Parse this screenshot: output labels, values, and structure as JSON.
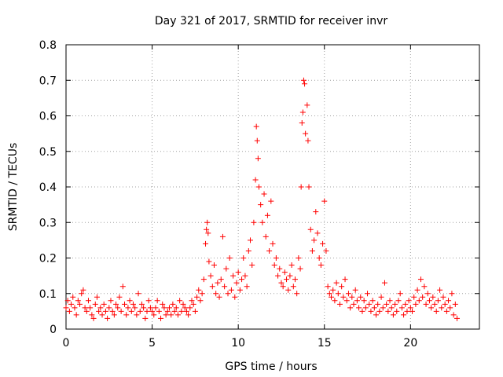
{
  "chart_data": {
    "type": "scatter",
    "title": "Day 321 of 2017, SRMTID for receiver invr",
    "xlabel": "GPS time / hours",
    "ylabel": "SRMTID / TECUs",
    "xlim": [
      0,
      24
    ],
    "ylim": [
      0,
      0.8
    ],
    "grid": true,
    "xticks": [
      {
        "value": 0,
        "label": "0"
      },
      {
        "value": 5,
        "label": "5"
      },
      {
        "value": 10,
        "label": "10"
      },
      {
        "value": 15,
        "label": "15"
      },
      {
        "value": 20,
        "label": "20"
      }
    ],
    "yticks": [
      {
        "value": 0,
        "label": "0"
      },
      {
        "value": 0.1,
        "label": "0.1"
      },
      {
        "value": 0.2,
        "label": "0.2"
      },
      {
        "value": 0.3,
        "label": "0.3"
      },
      {
        "value": 0.4,
        "label": "0.4"
      },
      {
        "value": 0.5,
        "label": "0.5"
      },
      {
        "value": 0.6,
        "label": "0.6"
      },
      {
        "value": 0.7,
        "label": "0.7"
      },
      {
        "value": 0.8,
        "label": "0.8"
      }
    ],
    "marker": "+",
    "series_color": "#ff0000",
    "series": [
      {
        "name": "SRMTID",
        "points": [
          [
            0.0,
            0.06
          ],
          [
            0.1,
            0.08
          ],
          [
            0.2,
            0.05
          ],
          [
            0.3,
            0.07
          ],
          [
            0.4,
            0.09
          ],
          [
            0.5,
            0.06
          ],
          [
            0.6,
            0.04
          ],
          [
            0.7,
            0.08
          ],
          [
            0.8,
            0.07
          ],
          [
            0.9,
            0.1
          ],
          [
            1.0,
            0.11
          ],
          [
            1.1,
            0.06
          ],
          [
            1.2,
            0.05
          ],
          [
            1.3,
            0.08
          ],
          [
            1.4,
            0.06
          ],
          [
            1.5,
            0.04
          ],
          [
            1.6,
            0.03
          ],
          [
            1.7,
            0.07
          ],
          [
            1.8,
            0.09
          ],
          [
            1.9,
            0.05
          ],
          [
            2.0,
            0.06
          ],
          [
            2.1,
            0.04
          ],
          [
            2.2,
            0.07
          ],
          [
            2.3,
            0.05
          ],
          [
            2.4,
            0.03
          ],
          [
            2.5,
            0.06
          ],
          [
            2.6,
            0.08
          ],
          [
            2.7,
            0.05
          ],
          [
            2.8,
            0.04
          ],
          [
            2.9,
            0.07
          ],
          [
            3.0,
            0.06
          ],
          [
            3.1,
            0.09
          ],
          [
            3.2,
            0.05
          ],
          [
            3.3,
            0.12
          ],
          [
            3.4,
            0.07
          ],
          [
            3.5,
            0.04
          ],
          [
            3.6,
            0.06
          ],
          [
            3.7,
            0.08
          ],
          [
            3.8,
            0.05
          ],
          [
            3.9,
            0.07
          ],
          [
            4.0,
            0.06
          ],
          [
            4.1,
            0.04
          ],
          [
            4.2,
            0.1
          ],
          [
            4.3,
            0.05
          ],
          [
            4.4,
            0.07
          ],
          [
            4.5,
            0.06
          ],
          [
            4.6,
            0.03
          ],
          [
            4.7,
            0.05
          ],
          [
            4.8,
            0.08
          ],
          [
            4.9,
            0.06
          ],
          [
            5.0,
            0.05
          ],
          [
            5.1,
            0.04
          ],
          [
            5.2,
            0.06
          ],
          [
            5.3,
            0.08
          ],
          [
            5.4,
            0.05
          ],
          [
            5.5,
            0.03
          ],
          [
            5.6,
            0.07
          ],
          [
            5.7,
            0.06
          ],
          [
            5.8,
            0.04
          ],
          [
            5.9,
            0.05
          ],
          [
            6.0,
            0.06
          ],
          [
            6.1,
            0.04
          ],
          [
            6.2,
            0.07
          ],
          [
            6.3,
            0.05
          ],
          [
            6.4,
            0.06
          ],
          [
            6.5,
            0.04
          ],
          [
            6.6,
            0.08
          ],
          [
            6.7,
            0.05
          ],
          [
            6.8,
            0.07
          ],
          [
            6.9,
            0.06
          ],
          [
            7.0,
            0.05
          ],
          [
            7.1,
            0.04
          ],
          [
            7.2,
            0.06
          ],
          [
            7.3,
            0.08
          ],
          [
            7.4,
            0.07
          ],
          [
            7.5,
            0.05
          ],
          [
            7.6,
            0.09
          ],
          [
            7.7,
            0.11
          ],
          [
            7.8,
            0.08
          ],
          [
            7.9,
            0.1
          ],
          [
            8.0,
            0.14
          ],
          [
            8.1,
            0.24
          ],
          [
            8.15,
            0.28
          ],
          [
            8.2,
            0.3
          ],
          [
            8.25,
            0.27
          ],
          [
            8.3,
            0.19
          ],
          [
            8.4,
            0.15
          ],
          [
            8.5,
            0.12
          ],
          [
            8.6,
            0.18
          ],
          [
            8.7,
            0.1
          ],
          [
            8.8,
            0.13
          ],
          [
            8.9,
            0.09
          ],
          [
            9.0,
            0.14
          ],
          [
            9.1,
            0.26
          ],
          [
            9.2,
            0.12
          ],
          [
            9.3,
            0.17
          ],
          [
            9.4,
            0.1
          ],
          [
            9.5,
            0.2
          ],
          [
            9.6,
            0.11
          ],
          [
            9.7,
            0.15
          ],
          [
            9.8,
            0.09
          ],
          [
            9.9,
            0.13
          ],
          [
            10.0,
            0.16
          ],
          [
            10.1,
            0.11
          ],
          [
            10.2,
            0.14
          ],
          [
            10.3,
            0.2
          ],
          [
            10.4,
            0.15
          ],
          [
            10.5,
            0.12
          ],
          [
            10.6,
            0.22
          ],
          [
            10.7,
            0.25
          ],
          [
            10.8,
            0.18
          ],
          [
            10.9,
            0.3
          ],
          [
            11.0,
            0.42
          ],
          [
            11.05,
            0.57
          ],
          [
            11.1,
            0.53
          ],
          [
            11.15,
            0.48
          ],
          [
            11.2,
            0.4
          ],
          [
            11.3,
            0.35
          ],
          [
            11.4,
            0.3
          ],
          [
            11.5,
            0.38
          ],
          [
            11.6,
            0.26
          ],
          [
            11.7,
            0.32
          ],
          [
            11.8,
            0.22
          ],
          [
            11.9,
            0.36
          ],
          [
            12.0,
            0.24
          ],
          [
            12.1,
            0.18
          ],
          [
            12.2,
            0.2
          ],
          [
            12.3,
            0.15
          ],
          [
            12.4,
            0.17
          ],
          [
            12.5,
            0.13
          ],
          [
            12.6,
            0.12
          ],
          [
            12.7,
            0.16
          ],
          [
            12.8,
            0.14
          ],
          [
            12.9,
            0.11
          ],
          [
            13.0,
            0.15
          ],
          [
            13.1,
            0.18
          ],
          [
            13.2,
            0.12
          ],
          [
            13.3,
            0.14
          ],
          [
            13.4,
            0.1
          ],
          [
            13.5,
            0.2
          ],
          [
            13.6,
            0.17
          ],
          [
            13.65,
            0.4
          ],
          [
            13.7,
            0.58
          ],
          [
            13.75,
            0.61
          ],
          [
            13.8,
            0.7
          ],
          [
            13.85,
            0.69
          ],
          [
            13.9,
            0.55
          ],
          [
            14.0,
            0.63
          ],
          [
            14.05,
            0.53
          ],
          [
            14.1,
            0.4
          ],
          [
            14.2,
            0.28
          ],
          [
            14.3,
            0.22
          ],
          [
            14.4,
            0.25
          ],
          [
            14.5,
            0.33
          ],
          [
            14.6,
            0.27
          ],
          [
            14.7,
            0.2
          ],
          [
            14.8,
            0.18
          ],
          [
            14.9,
            0.24
          ],
          [
            15.0,
            0.36
          ],
          [
            15.1,
            0.22
          ],
          [
            15.2,
            0.12
          ],
          [
            15.3,
            0.1
          ],
          [
            15.4,
            0.09
          ],
          [
            15.5,
            0.11
          ],
          [
            15.6,
            0.08
          ],
          [
            15.7,
            0.13
          ],
          [
            15.8,
            0.1
          ],
          [
            15.9,
            0.07
          ],
          [
            16.0,
            0.12
          ],
          [
            16.1,
            0.09
          ],
          [
            16.2,
            0.14
          ],
          [
            16.3,
            0.08
          ],
          [
            16.4,
            0.1
          ],
          [
            16.5,
            0.06
          ],
          [
            16.6,
            0.09
          ],
          [
            16.7,
            0.07
          ],
          [
            16.8,
            0.11
          ],
          [
            16.9,
            0.08
          ],
          [
            17.0,
            0.06
          ],
          [
            17.1,
            0.09
          ],
          [
            17.2,
            0.05
          ],
          [
            17.3,
            0.08
          ],
          [
            17.4,
            0.06
          ],
          [
            17.5,
            0.1
          ],
          [
            17.6,
            0.07
          ],
          [
            17.7,
            0.05
          ],
          [
            17.8,
            0.08
          ],
          [
            17.9,
            0.06
          ],
          [
            18.0,
            0.04
          ],
          [
            18.1,
            0.07
          ],
          [
            18.2,
            0.05
          ],
          [
            18.3,
            0.09
          ],
          [
            18.4,
            0.06
          ],
          [
            18.5,
            0.13
          ],
          [
            18.6,
            0.07
          ],
          [
            18.7,
            0.05
          ],
          [
            18.8,
            0.08
          ],
          [
            18.9,
            0.06
          ],
          [
            19.0,
            0.04
          ],
          [
            19.1,
            0.07
          ],
          [
            19.2,
            0.05
          ],
          [
            19.3,
            0.08
          ],
          [
            19.4,
            0.1
          ],
          [
            19.5,
            0.06
          ],
          [
            19.6,
            0.04
          ],
          [
            19.7,
            0.07
          ],
          [
            19.8,
            0.05
          ],
          [
            19.9,
            0.08
          ],
          [
            20.0,
            0.06
          ],
          [
            20.1,
            0.05
          ],
          [
            20.2,
            0.09
          ],
          [
            20.3,
            0.07
          ],
          [
            20.4,
            0.11
          ],
          [
            20.5,
            0.08
          ],
          [
            20.6,
            0.14
          ],
          [
            20.7,
            0.09
          ],
          [
            20.8,
            0.12
          ],
          [
            20.9,
            0.07
          ],
          [
            21.0,
            0.1
          ],
          [
            21.1,
            0.08
          ],
          [
            21.2,
            0.06
          ],
          [
            21.3,
            0.09
          ],
          [
            21.4,
            0.07
          ],
          [
            21.5,
            0.05
          ],
          [
            21.6,
            0.08
          ],
          [
            21.7,
            0.11
          ],
          [
            21.8,
            0.06
          ],
          [
            21.9,
            0.09
          ],
          [
            22.0,
            0.07
          ],
          [
            22.1,
            0.05
          ],
          [
            22.2,
            0.08
          ],
          [
            22.3,
            0.06
          ],
          [
            22.4,
            0.1
          ],
          [
            22.5,
            0.04
          ],
          [
            22.6,
            0.07
          ],
          [
            22.7,
            0.03
          ]
        ]
      }
    ]
  }
}
